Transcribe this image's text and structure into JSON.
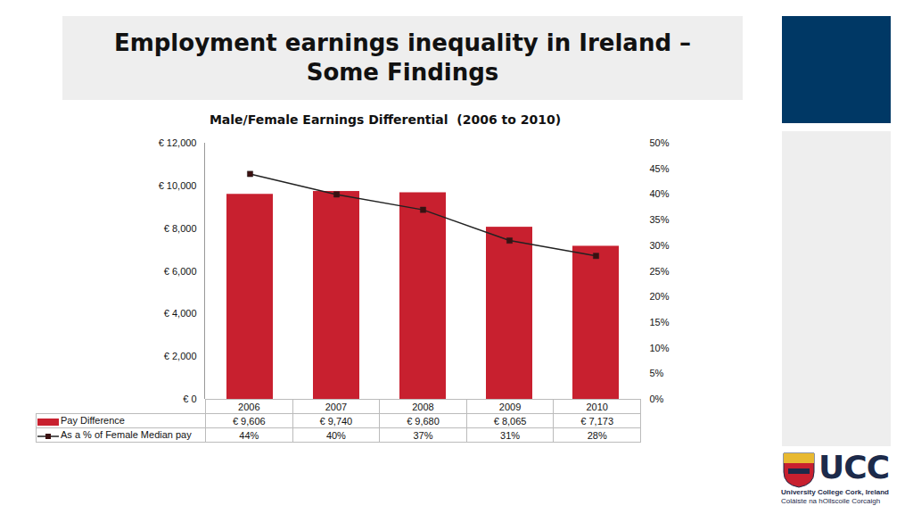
{
  "slide": {
    "title": "Employment earnings inequality in Ireland – Some Findings",
    "logo": {
      "text": "UCC",
      "lines": [
        "University College Cork, Ireland",
        "Coláiste na hOllscoile Corcaigh"
      ]
    }
  },
  "chart_data": {
    "type": "bar",
    "title": "Male/Female Earnings Differential  (2006 to 2010)",
    "categories": [
      "2006",
      "2007",
      "2008",
      "2009",
      "2010"
    ],
    "series": [
      {
        "name": "Pay Difference",
        "type": "bar",
        "color": "#c8202f",
        "values": [
          9606,
          9740,
          9680,
          8065,
          7173
        ],
        "value_labels": [
          "€ 9,606",
          "€ 9,740",
          "€ 9,680",
          "€ 8,065",
          "€ 7,173"
        ]
      },
      {
        "name": "As a % of Female Median pay",
        "type": "line",
        "axis": "y2",
        "color": "#222222",
        "marker": "square",
        "values": [
          44,
          40,
          37,
          31,
          28
        ],
        "value_labels": [
          "44%",
          "40%",
          "37%",
          "31%",
          "28%"
        ]
      }
    ],
    "ylim": [
      0,
      12000
    ],
    "yticks": [
      {
        "value": 0,
        "label": "€ 0"
      },
      {
        "value": 2000,
        "label": "€ 2,000"
      },
      {
        "value": 4000,
        "label": "€ 4,000"
      },
      {
        "value": 6000,
        "label": "€ 6,000"
      },
      {
        "value": 8000,
        "label": "€ 8,000"
      },
      {
        "value": 10000,
        "label": "€ 10,000"
      },
      {
        "value": 12000,
        "label": "€ 12,000"
      }
    ],
    "y2lim": [
      0,
      50
    ],
    "y2ticks": [
      {
        "value": 0,
        "label": "0%"
      },
      {
        "value": 5,
        "label": "5%"
      },
      {
        "value": 10,
        "label": "10%"
      },
      {
        "value": 15,
        "label": "15%"
      },
      {
        "value": 20,
        "label": "20%"
      },
      {
        "value": 25,
        "label": "25%"
      },
      {
        "value": 30,
        "label": "30%"
      },
      {
        "value": 35,
        "label": "35%"
      },
      {
        "value": 40,
        "label": "40%"
      },
      {
        "value": 45,
        "label": "45%"
      },
      {
        "value": 50,
        "label": "50%"
      }
    ],
    "grid": false,
    "legend": "bottom"
  }
}
